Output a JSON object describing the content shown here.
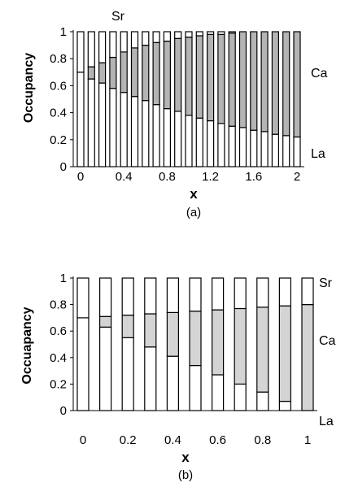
{
  "chart_data": [
    {
      "type": "bar",
      "stacked": true,
      "caption": "(a)",
      "xlabel": "x",
      "ylabel": "Occupancy",
      "ylim": [
        0,
        1
      ],
      "yticks": [
        "0",
        "0.2",
        "0.4",
        "0.6",
        "0.8",
        "1"
      ],
      "xticks": [
        "0",
        "0.4",
        "0.8",
        "1.2",
        "1.6",
        "2"
      ],
      "x": [
        0,
        0.1,
        0.2,
        0.3,
        0.4,
        0.5,
        0.6,
        0.7,
        0.8,
        0.9,
        1.0,
        1.1,
        1.2,
        1.3,
        1.4,
        1.5,
        1.6,
        1.7,
        1.8,
        1.9,
        2.0
      ],
      "series": [
        {
          "name": "La",
          "color": "#ffffff",
          "values": [
            0.7,
            0.65,
            0.62,
            0.58,
            0.55,
            0.52,
            0.49,
            0.46,
            0.43,
            0.41,
            0.38,
            0.36,
            0.34,
            0.32,
            0.3,
            0.29,
            0.27,
            0.26,
            0.24,
            0.23,
            0.22
          ]
        },
        {
          "name": "Ca",
          "color": "#b4b4b4",
          "values": [
            0.0,
            0.09,
            0.15,
            0.23,
            0.3,
            0.36,
            0.41,
            0.46,
            0.5,
            0.54,
            0.58,
            0.61,
            0.64,
            0.66,
            0.69,
            0.71,
            0.73,
            0.74,
            0.76,
            0.77,
            0.78
          ]
        },
        {
          "name": "Sr",
          "color": "#ffffff",
          "values": [
            0.3,
            0.26,
            0.23,
            0.19,
            0.15,
            0.12,
            0.1,
            0.08,
            0.07,
            0.05,
            0.04,
            0.03,
            0.02,
            0.02,
            0.01,
            0.0,
            0.0,
            0.0,
            0.0,
            0.0,
            0.0
          ]
        }
      ],
      "series_labels": [
        "Sr",
        "Ca",
        "La"
      ]
    },
    {
      "type": "bar",
      "stacked": true,
      "caption": "(b)",
      "xlabel": "x",
      "ylabel": "Occuapancy",
      "ylim": [
        0,
        1
      ],
      "yticks": [
        "0",
        "0.2",
        "0.4",
        "0.6",
        "0.8",
        "1"
      ],
      "xticks": [
        "0",
        "0.2",
        "0.4",
        "0.6",
        "0.8",
        "1"
      ],
      "x": [
        0,
        0.1,
        0.2,
        0.3,
        0.4,
        0.5,
        0.6,
        0.7,
        0.8,
        0.9,
        1.0
      ],
      "series": [
        {
          "name": "La",
          "color": "#ffffff",
          "values": [
            0.7,
            0.63,
            0.55,
            0.48,
            0.41,
            0.34,
            0.27,
            0.2,
            0.14,
            0.07,
            0.0
          ]
        },
        {
          "name": "Ca",
          "color": "#d4d4d4",
          "values": [
            0.0,
            0.08,
            0.17,
            0.25,
            0.33,
            0.41,
            0.49,
            0.57,
            0.64,
            0.72,
            0.8
          ]
        },
        {
          "name": "Sr",
          "color": "#ffffff",
          "values": [
            0.3,
            0.29,
            0.28,
            0.27,
            0.26,
            0.25,
            0.24,
            0.23,
            0.22,
            0.21,
            0.2
          ]
        }
      ],
      "series_labels": [
        "Sr",
        "Ca",
        "La"
      ]
    }
  ]
}
